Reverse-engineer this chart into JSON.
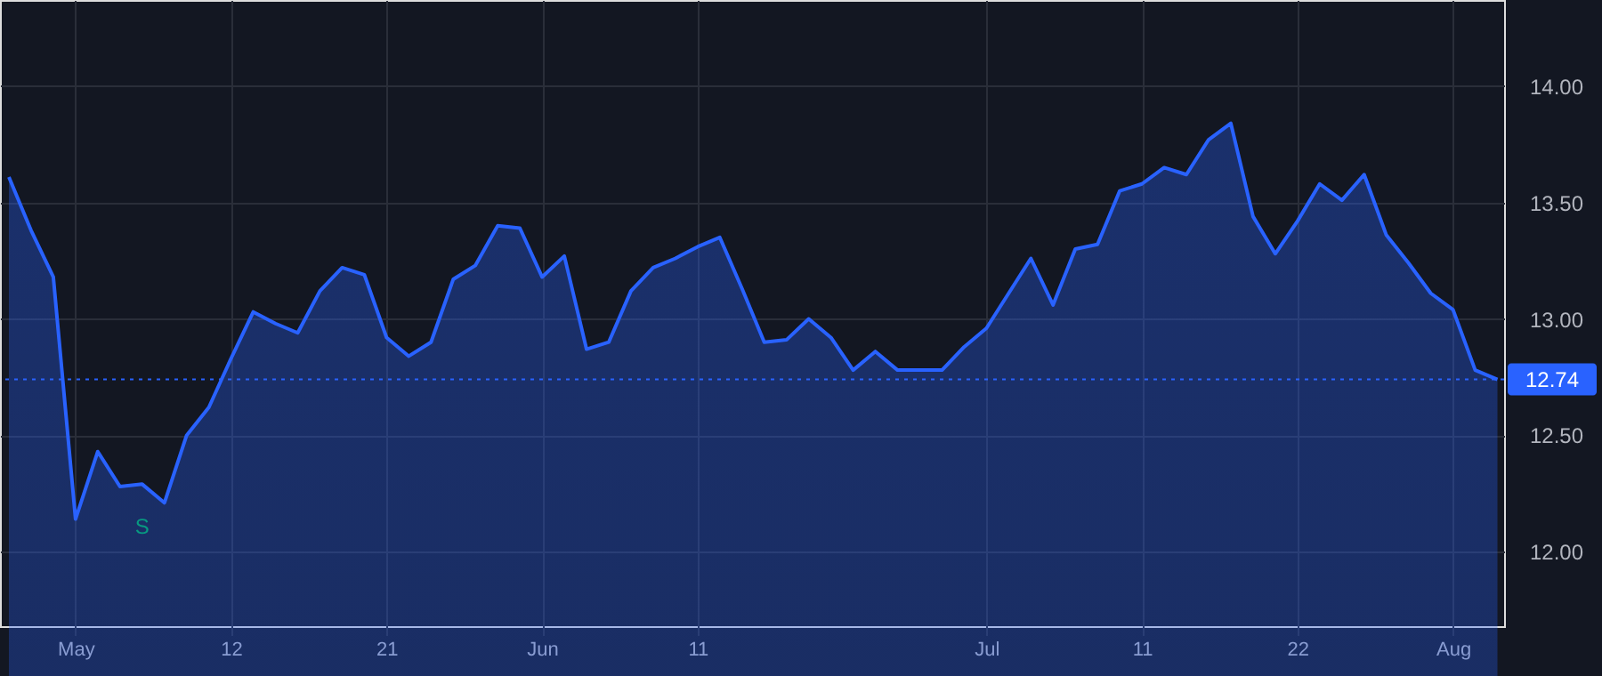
{
  "chart_data": {
    "type": "area",
    "categories": [
      null,
      null,
      null,
      "May",
      null,
      null,
      null,
      null,
      null,
      null,
      "12",
      null,
      null,
      null,
      null,
      null,
      null,
      "21",
      null,
      null,
      null,
      null,
      null,
      null,
      "Jun",
      null,
      null,
      null,
      null,
      null,
      null,
      "11",
      null,
      null,
      null,
      null,
      null,
      null,
      null,
      null,
      null,
      null,
      null,
      null,
      "Jul",
      null,
      null,
      null,
      null,
      null,
      null,
      "11",
      null,
      null,
      null,
      null,
      null,
      null,
      "22",
      null,
      null,
      null,
      null,
      null,
      null,
      "Aug",
      null,
      null
    ],
    "series": [
      {
        "color": "#2962ff",
        "values": [
          13.61,
          13.38,
          13.18,
          12.14,
          12.43,
          12.28,
          12.29,
          12.21,
          12.5,
          12.62,
          12.83,
          13.03,
          12.98,
          12.94,
          13.12,
          13.22,
          13.19,
          12.92,
          12.84,
          12.9,
          13.17,
          13.23,
          13.4,
          13.39,
          13.18,
          13.27,
          12.87,
          12.9,
          13.12,
          13.22,
          13.26,
          13.31,
          13.35,
          13.13,
          12.9,
          12.91,
          13.0,
          12.92,
          12.78,
          12.86,
          12.78,
          12.78,
          12.78,
          12.88,
          12.96,
          13.11,
          13.26,
          13.06,
          13.3,
          13.32,
          13.55,
          13.58,
          13.65,
          13.62,
          13.77,
          13.84,
          13.44,
          13.28,
          13.42,
          13.58,
          13.51,
          13.62,
          13.36,
          13.24,
          13.11,
          13.04,
          12.78,
          12.74
        ]
      }
    ],
    "ylim": [
      11.68,
      14.37
    ],
    "yticks": [
      {
        "value": 12,
        "label": "12.00"
      },
      {
        "value": 12.5,
        "label": "12.50"
      },
      {
        "value": 13,
        "label": "13.00"
      },
      {
        "value": 13.5,
        "label": "13.50"
      },
      {
        "value": 14,
        "label": "14.00"
      }
    ],
    "ref_lines": [
      {
        "axis": "y",
        "value": 12.74,
        "label": "12.74",
        "color": "#2962ff",
        "line_style": "dotted"
      }
    ],
    "annotations": [
      {
        "text": "S",
        "y": 12.29
      }
    ],
    "grid": true,
    "marker": "none",
    "line_style": "solid"
  }
}
